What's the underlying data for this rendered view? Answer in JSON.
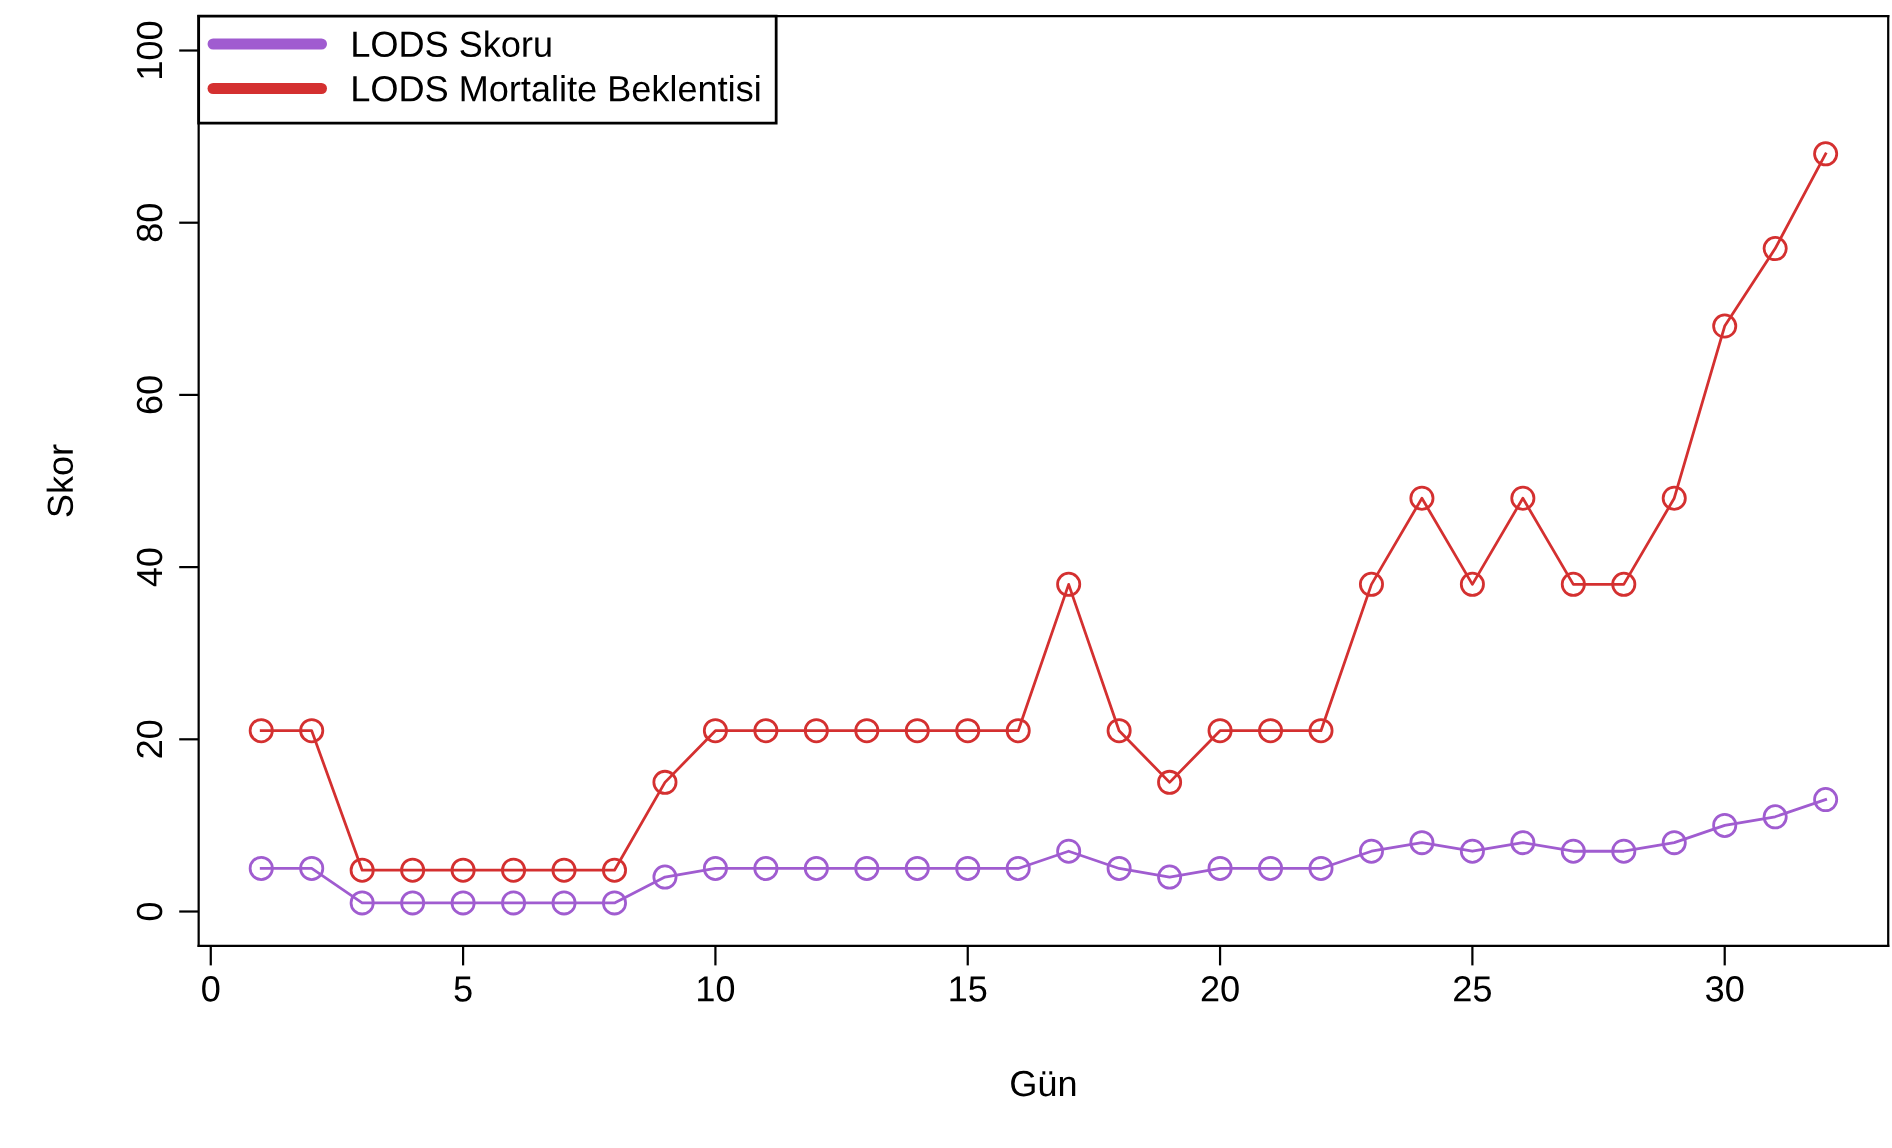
{
  "chart_data": {
    "type": "line",
    "xlabel": "Gün",
    "ylabel": "Skor",
    "x": [
      1,
      2,
      3,
      4,
      5,
      6,
      7,
      8,
      9,
      10,
      11,
      12,
      13,
      14,
      15,
      16,
      17,
      18,
      19,
      20,
      21,
      22,
      23,
      24,
      25,
      26,
      27,
      28,
      29,
      30,
      31,
      32
    ],
    "series": [
      {
        "name": "LODS Skoru",
        "color": "#a05cd0",
        "values": [
          5,
          5,
          1,
          1,
          1,
          1,
          1,
          1,
          4,
          5,
          5,
          5,
          5,
          5,
          5,
          5,
          7,
          5,
          4,
          5,
          5,
          5,
          7,
          8,
          7,
          8,
          7,
          7,
          8,
          10,
          11,
          13
        ]
      },
      {
        "name": "LODS Mortalite Beklentisi",
        "color": "#d43030",
        "values": [
          21,
          21,
          4.8,
          4.8,
          4.8,
          4.8,
          4.8,
          4.8,
          15,
          21,
          21,
          21,
          21,
          21,
          21,
          21,
          38,
          21,
          15,
          21,
          21,
          21,
          38,
          48,
          38,
          48,
          38,
          38,
          48,
          68,
          77,
          88
        ]
      }
    ],
    "xlim": [
      -0.24,
      33.24
    ],
    "ylim": [
      -4,
      104
    ],
    "xticks": [
      0,
      5,
      10,
      15,
      20,
      25,
      30
    ],
    "yticks": [
      0,
      20,
      40,
      60,
      80,
      100
    ],
    "marker": "circle",
    "line_style": "solid",
    "legend": "top left",
    "grid": false
  }
}
